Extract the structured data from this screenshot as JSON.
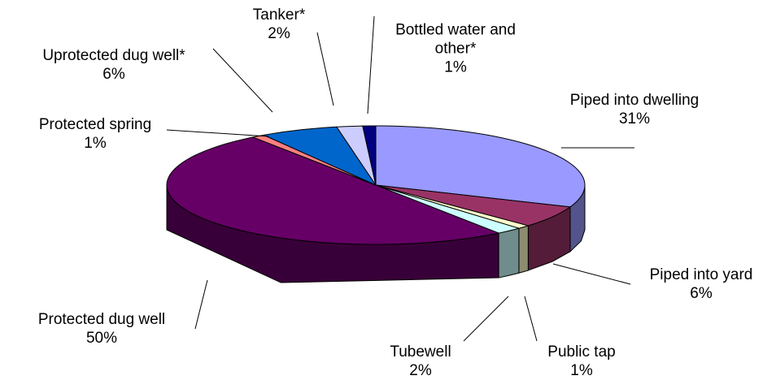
{
  "chart_data": {
    "type": "pie",
    "categories": [
      "Piped into dwelling",
      "Piped into yard",
      "Public tap",
      "Tubewell",
      "Protected dug well",
      "Protected spring",
      "Uprotected dug well*",
      "Tanker*",
      "Bottled water and other*"
    ],
    "values": [
      31,
      6,
      1,
      2,
      50,
      1,
      6,
      2,
      1
    ],
    "value_labels": [
      "31%",
      "6%",
      "1%",
      "2%",
      "50%",
      "1%",
      "6%",
      "2%",
      "1%"
    ],
    "colors": [
      "#9999ff",
      "#993366",
      "#ffffcc",
      "#ccffff",
      "#660066",
      "#ff8080",
      "#0066cc",
      "#ccccff",
      "#000080"
    ]
  }
}
